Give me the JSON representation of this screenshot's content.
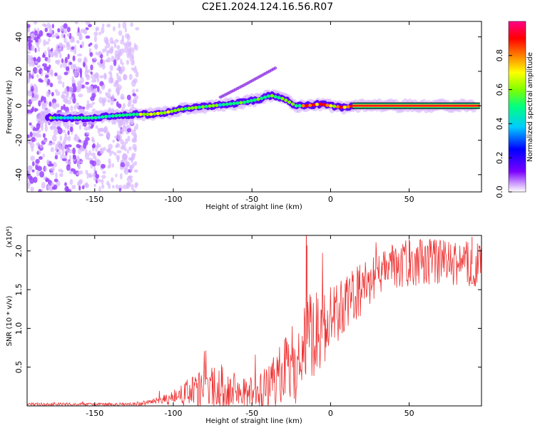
{
  "figure": {
    "title": "C2E1.2024.124.16.56.R07"
  },
  "chart_data": [
    {
      "type": "heatmap",
      "xlabel": "Height of straight line (km)",
      "ylabel": "Frequency (Hz)",
      "xlim": [
        -193,
        96
      ],
      "ylim": [
        -50,
        49
      ],
      "xticks": [
        -150,
        -100,
        -50,
        0,
        50
      ],
      "yticks": [
        -40,
        -20,
        0,
        20,
        40
      ],
      "colorbar": {
        "label": "Normalized spectral amplitude",
        "range": [
          0,
          1
        ],
        "ticks": [
          0.0,
          0.2,
          0.4,
          0.6,
          0.8
        ],
        "colormap": [
          "#ffffff",
          "#cc99ff",
          "#7a00ff",
          "#0000ff",
          "#00ccff",
          "#00ff80",
          "#7fff00",
          "#ffff00",
          "#ff8000",
          "#ff0000",
          "#ff0088"
        ]
      },
      "ridge": [
        {
          "x": -175,
          "y": -7,
          "amp": 0.45
        },
        {
          "x": -160,
          "y": -7,
          "amp": 0.4
        },
        {
          "x": -150,
          "y": -7,
          "amp": 0.45
        },
        {
          "x": -140,
          "y": -6,
          "amp": 0.45
        },
        {
          "x": -125,
          "y": -5,
          "amp": 0.5
        },
        {
          "x": -115,
          "y": -5,
          "amp": 0.6
        },
        {
          "x": -105,
          "y": -4,
          "amp": 0.55
        },
        {
          "x": -95,
          "y": -2,
          "amp": 0.55
        },
        {
          "x": -85,
          "y": -1,
          "amp": 0.5
        },
        {
          "x": -75,
          "y": 0,
          "amp": 0.5
        },
        {
          "x": -65,
          "y": 1,
          "amp": 0.45
        },
        {
          "x": -55,
          "y": 2,
          "amp": 0.5
        },
        {
          "x": -45,
          "y": 4,
          "amp": 0.55
        },
        {
          "x": -38,
          "y": 6,
          "amp": 0.6
        },
        {
          "x": -30,
          "y": 4,
          "amp": 0.55
        },
        {
          "x": -22,
          "y": 0,
          "amp": 0.55
        },
        {
          "x": -15,
          "y": 0,
          "amp": 0.8
        },
        {
          "x": -7,
          "y": 1,
          "amp": 0.75
        },
        {
          "x": 0,
          "y": 0,
          "amp": 0.75
        },
        {
          "x": 8,
          "y": -1,
          "amp": 0.7
        },
        {
          "x": 15,
          "y": 0,
          "amp": 0.9
        },
        {
          "x": 95,
          "y": 0,
          "amp": 0.95
        }
      ],
      "secondary_branch": [
        {
          "x": -70,
          "y": 5
        },
        {
          "x": -55,
          "y": 12
        },
        {
          "x": -45,
          "y": 17
        },
        {
          "x": -35,
          "y": 22
        }
      ]
    },
    {
      "type": "line",
      "xlabel": "Height of straight line (km)",
      "ylabel": "SNR (10 * v/v)",
      "scale_label": "(x10⁴)",
      "xlim": [
        -193,
        96
      ],
      "ylim": [
        0,
        2.2
      ],
      "xticks": [
        -150,
        -100,
        -50,
        0,
        50
      ],
      "yticks": [
        0.5,
        1.0,
        1.5,
        2.0
      ],
      "color": "#ee3333",
      "envelope": [
        {
          "x": -193,
          "base": 0.02,
          "spread": 0.02
        },
        {
          "x": -130,
          "base": 0.02,
          "spread": 0.02
        },
        {
          "x": -120,
          "base": 0.03,
          "spread": 0.03
        },
        {
          "x": -110,
          "base": 0.06,
          "spread": 0.05
        },
        {
          "x": -100,
          "base": 0.1,
          "spread": 0.1
        },
        {
          "x": -90,
          "base": 0.17,
          "spread": 0.2
        },
        {
          "x": -80,
          "base": 0.22,
          "spread": 0.25
        },
        {
          "x": -70,
          "base": 0.25,
          "spread": 0.3
        },
        {
          "x": -60,
          "base": 0.2,
          "spread": 0.22
        },
        {
          "x": -50,
          "base": 0.18,
          "spread": 0.2
        },
        {
          "x": -40,
          "base": 0.22,
          "spread": 0.28
        },
        {
          "x": -30,
          "base": 0.4,
          "spread": 0.45
        },
        {
          "x": -20,
          "base": 0.65,
          "spread": 0.6
        },
        {
          "x": -15,
          "base": 0.8,
          "spread": 0.7
        },
        {
          "x": -10,
          "base": 0.95,
          "spread": 0.55
        },
        {
          "x": 0,
          "base": 1.1,
          "spread": 0.45
        },
        {
          "x": 10,
          "base": 1.3,
          "spread": 0.4
        },
        {
          "x": 20,
          "base": 1.5,
          "spread": 0.35
        },
        {
          "x": 30,
          "base": 1.7,
          "spread": 0.3
        },
        {
          "x": 40,
          "base": 1.8,
          "spread": 0.3
        },
        {
          "x": 50,
          "base": 1.85,
          "spread": 0.3
        },
        {
          "x": 70,
          "base": 1.85,
          "spread": 0.3
        },
        {
          "x": 96,
          "base": 1.82,
          "spread": 0.3
        }
      ],
      "spikes": [
        {
          "x": -15,
          "y": 2.07
        },
        {
          "x": 50,
          "y": 2.15
        },
        {
          "x": 90,
          "y": 2.18
        }
      ]
    }
  ]
}
